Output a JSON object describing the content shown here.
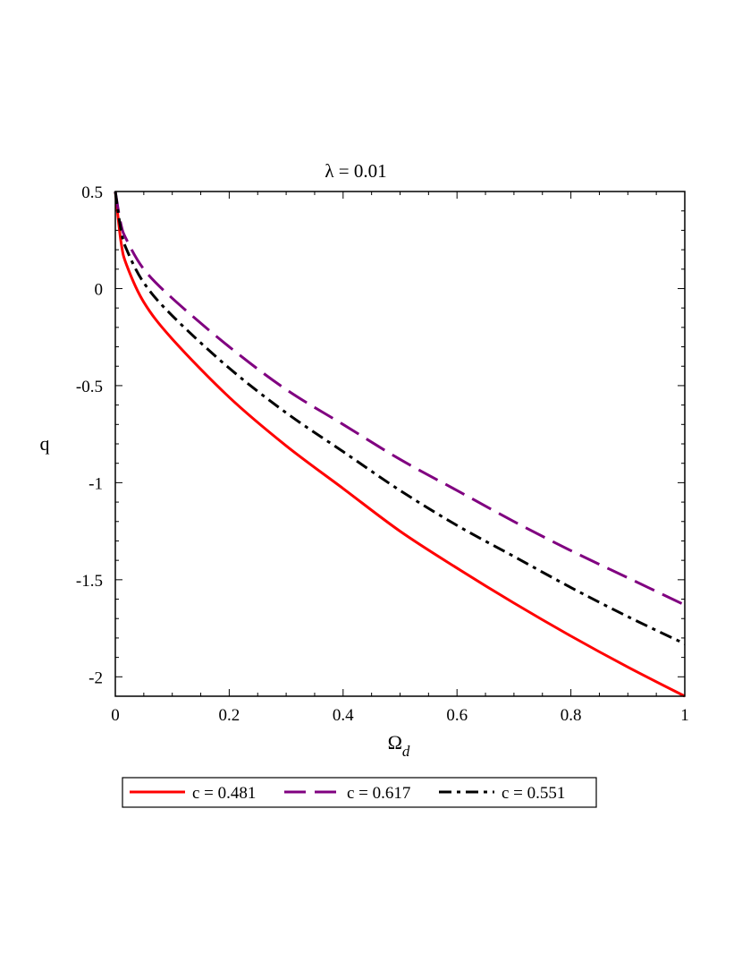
{
  "chart_data": {
    "type": "line",
    "title": "λ = 0.01",
    "xlabel": "Ω",
    "xlabel_subscript": "d",
    "ylabel": "q",
    "xlim": [
      0,
      1
    ],
    "ylim": [
      -2.1,
      0.5
    ],
    "xticks": [
      0,
      0.2,
      0.4,
      0.6,
      0.8,
      1
    ],
    "xtick_labels": [
      "0",
      "0.2",
      "0.4",
      "0.6",
      "0.8",
      "1"
    ],
    "yticks": [
      0.5,
      0,
      -0.5,
      -1,
      -1.5,
      -2
    ],
    "ytick_labels": [
      "0.5",
      "0",
      "-0.5",
      "-1",
      "-1.5",
      "-2"
    ],
    "grid": false,
    "legend_position": "bottom",
    "series": [
      {
        "name": "c = 0.481",
        "color": "#ff0000",
        "dash": "solid",
        "x": [
          0,
          0.01,
          0.02,
          0.05,
          0.1,
          0.2,
          0.3,
          0.4,
          0.5,
          0.6,
          0.7,
          0.8,
          0.9,
          1.0
        ],
        "y": [
          0.5,
          0.24,
          0.12,
          -0.07,
          -0.26,
          -0.56,
          -0.81,
          -1.03,
          -1.25,
          -1.44,
          -1.62,
          -1.79,
          -1.95,
          -2.1
        ]
      },
      {
        "name": "c = 0.617",
        "color": "#800080",
        "dash": "long-dash",
        "x": [
          0,
          0.01,
          0.02,
          0.05,
          0.1,
          0.2,
          0.3,
          0.4,
          0.5,
          0.6,
          0.7,
          0.8,
          0.9,
          1.0
        ],
        "y": [
          0.5,
          0.33,
          0.25,
          0.1,
          -0.05,
          -0.3,
          -0.52,
          -0.7,
          -0.88,
          -1.04,
          -1.2,
          -1.35,
          -1.49,
          -1.63
        ]
      },
      {
        "name": "c = 0.551",
        "color": "#000000",
        "dash": "dash-dot",
        "x": [
          0,
          0.01,
          0.02,
          0.05,
          0.1,
          0.2,
          0.3,
          0.4,
          0.5,
          0.6,
          0.7,
          0.8,
          0.9,
          1.0
        ],
        "y": [
          0.5,
          0.3,
          0.2,
          0.03,
          -0.14,
          -0.41,
          -0.64,
          -0.84,
          -1.04,
          -1.22,
          -1.38,
          -1.54,
          -1.69,
          -1.83
        ]
      }
    ]
  }
}
